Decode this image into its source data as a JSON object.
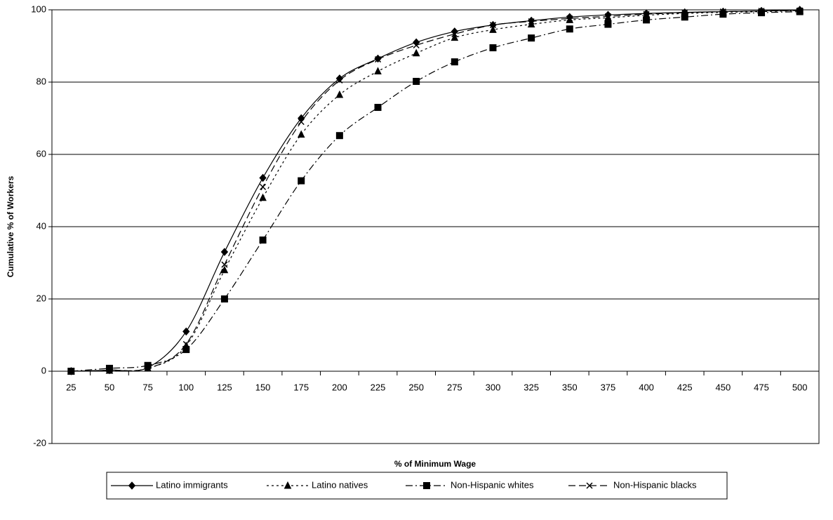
{
  "chart_data": {
    "type": "line",
    "x_label": "% of Minimum Wage",
    "y_label": "Cumulative % of Workers",
    "categories": [
      "25",
      "50",
      "75",
      "100",
      "125",
      "150",
      "175",
      "200",
      "225",
      "250",
      "275",
      "300",
      "325",
      "350",
      "375",
      "400",
      "425",
      "450",
      "475",
      "500"
    ],
    "series": [
      {
        "name": "Latino immigrants",
        "color": "#000000",
        "marker": "diamond",
        "dash": "none",
        "values": [
          0,
          0.3,
          1,
          11,
          33,
          53.5,
          70,
          81,
          86.5,
          91,
          94,
          95.8,
          97,
          98,
          98.6,
          99,
          99.3,
          99.5,
          99.7,
          100
        ]
      },
      {
        "name": "Latino natives",
        "color": "#000000",
        "marker": "triangle",
        "dash": "3,4",
        "values": [
          0,
          0.2,
          0.8,
          7,
          28,
          48,
          65.5,
          76.5,
          83,
          88,
          92.3,
          94.5,
          96,
          97.2,
          97.8,
          98.5,
          99,
          99.3,
          99.5,
          99.8
        ]
      },
      {
        "name": "Non-Hispanic whites",
        "color": "#000000",
        "marker": "square",
        "dash": "10,4,2,4",
        "values": [
          0,
          0.8,
          1.6,
          6,
          20,
          36.3,
          52.7,
          65.2,
          73,
          80.2,
          85.6,
          89.5,
          92.2,
          94.7,
          96,
          97.2,
          98,
          98.8,
          99.2,
          99.5
        ]
      },
      {
        "name": "Non-Hispanic blacks",
        "color": "#000000",
        "marker": "x",
        "dash": "10,5",
        "values": [
          0,
          0.3,
          0.8,
          7.5,
          29.5,
          51,
          69,
          80.5,
          86.3,
          90.2,
          93.3,
          95.8,
          96.8,
          97.6,
          98.2,
          98.8,
          99.2,
          99.5,
          99.7,
          99.8
        ]
      }
    ],
    "ylim": [
      -20,
      100
    ],
    "yticks": [
      -20,
      0,
      20,
      40,
      60,
      80,
      100
    ],
    "grid": true,
    "legend": "bottom"
  }
}
